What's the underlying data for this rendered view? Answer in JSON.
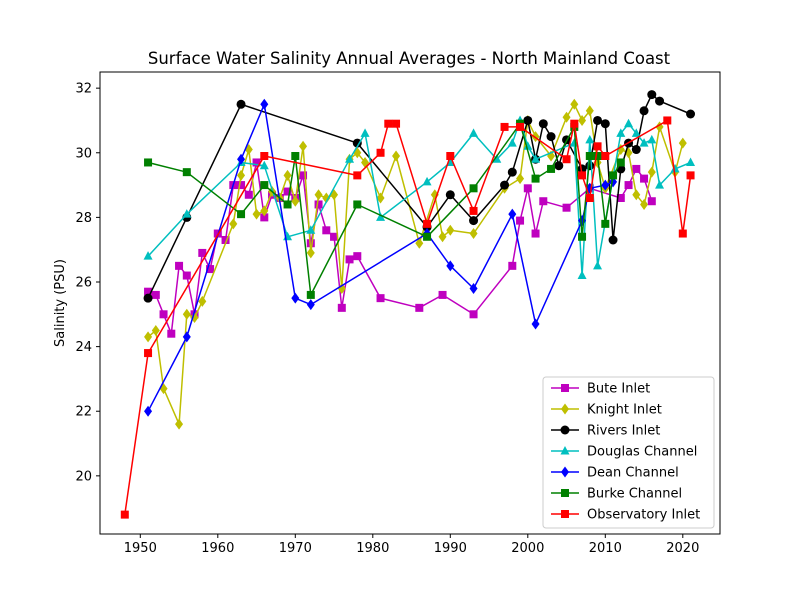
{
  "chart_data": {
    "type": "line",
    "title": "Surface Water Salinity Annual Averages - North Mainland Coast",
    "xlabel": "",
    "ylabel": "Salinity (PSU)",
    "xlim": [
      1944.8,
      2024.8
    ],
    "ylim": [
      18.2,
      32.5
    ],
    "xticks": [
      1950,
      1960,
      1970,
      1980,
      1990,
      2000,
      2010,
      2020
    ],
    "yticks": [
      20,
      22,
      24,
      26,
      28,
      30,
      32
    ],
    "grid": false,
    "legend_position": "bottom-right",
    "series": [
      {
        "name": "Bute Inlet",
        "color": "#bf00bf",
        "marker": "square",
        "x": [
          1951,
          1952,
          1953,
          1954,
          1955,
          1956,
          1957,
          1958,
          1959,
          1960,
          1961,
          1962,
          1963,
          1964,
          1965,
          1966,
          1967,
          1968,
          1969,
          1970,
          1971,
          1972,
          1973,
          1974,
          1975,
          1976,
          1977,
          1978,
          1981,
          1986,
          1989,
          1993,
          1998,
          1999,
          2000,
          2001,
          2002,
          2005,
          2008,
          2012,
          2013,
          2014,
          2015,
          2016
        ],
        "y": [
          25.7,
          25.6,
          25.0,
          24.4,
          26.5,
          26.2,
          25.0,
          26.9,
          26.4,
          27.5,
          27.3,
          29.0,
          29.0,
          28.7,
          29.7,
          28.0,
          28.7,
          28.6,
          28.8,
          28.6,
          29.3,
          27.2,
          28.4,
          27.6,
          27.4,
          25.2,
          26.7,
          26.8,
          25.5,
          25.2,
          25.6,
          25.0,
          26.5,
          27.9,
          28.9,
          27.5,
          28.5,
          28.3,
          28.9,
          28.6,
          29.0,
          29.5,
          29.2,
          28.5
        ]
      },
      {
        "name": "Knight Inlet",
        "color": "#bfbf00",
        "marker": "diamond",
        "x": [
          1951,
          1952,
          1953,
          1955,
          1956,
          1957,
          1958,
          1962,
          1963,
          1964,
          1965,
          1966,
          1967,
          1968,
          1969,
          1970,
          1971,
          1972,
          1973,
          1974,
          1975,
          1976,
          1977,
          1978,
          1979,
          1981,
          1983,
          1986,
          1988,
          1989,
          1990,
          1993,
          1997,
          1999,
          2000,
          2001,
          2003,
          2005,
          2006,
          2007,
          2008,
          2009,
          2010,
          2012,
          2013,
          2014,
          2015,
          2016,
          2017,
          2019,
          2020
        ],
        "y": [
          24.3,
          24.5,
          22.7,
          21.6,
          25.0,
          24.9,
          25.4,
          27.8,
          29.3,
          30.1,
          28.1,
          28.2,
          28.8,
          28.6,
          29.3,
          28.5,
          30.2,
          26.9,
          28.7,
          28.6,
          28.7,
          25.8,
          29.8,
          30.0,
          29.7,
          28.6,
          29.9,
          27.2,
          28.7,
          27.4,
          27.6,
          27.5,
          28.9,
          29.2,
          31.0,
          30.5,
          29.9,
          31.1,
          31.5,
          31.0,
          31.3,
          29.7,
          28.9,
          30.1,
          30.0,
          28.7,
          28.4,
          29.4,
          30.8,
          29.4,
          30.3
        ]
      },
      {
        "name": "Rivers Inlet",
        "color": "#000000",
        "marker": "circle",
        "x": [
          1951,
          1956,
          1963,
          1978,
          1987,
          1990,
          1993,
          1997,
          1998,
          2000,
          2001,
          2002,
          2003,
          2004,
          2005,
          2007,
          2008,
          2009,
          2010,
          2011,
          2012,
          2013,
          2014,
          2015,
          2016,
          2017,
          2021
        ],
        "y": [
          25.5,
          28.0,
          31.5,
          30.3,
          27.7,
          28.7,
          27.9,
          29.0,
          29.4,
          31.0,
          29.8,
          30.9,
          30.5,
          29.6,
          30.4,
          29.5,
          29.6,
          31.0,
          30.9,
          27.3,
          29.5,
          30.3,
          30.1,
          31.3,
          31.8,
          31.6,
          31.2
        ]
      },
      {
        "name": "Douglas Channel",
        "color": "#00bfbf",
        "marker": "triangle",
        "x": [
          1951,
          1956,
          1963,
          1966,
          1969,
          1972,
          1977,
          1979,
          1981,
          1987,
          1990,
          1993,
          1996,
          1998,
          1999,
          2000,
          2001,
          2006,
          2007,
          2008,
          2009,
          2012,
          2013,
          2014,
          2015,
          2016,
          2017,
          2019,
          2021
        ],
        "y": [
          26.8,
          28.1,
          29.7,
          29.6,
          27.4,
          27.6,
          29.8,
          30.6,
          28.0,
          29.1,
          29.7,
          30.6,
          29.8,
          30.3,
          31.0,
          30.2,
          29.8,
          30.3,
          26.2,
          30.4,
          26.5,
          30.6,
          30.9,
          30.6,
          30.3,
          30.4,
          29.0,
          29.5,
          29.7
        ]
      },
      {
        "name": "Dean Channel",
        "color": "#0000ff",
        "marker": "diamond",
        "x": [
          1951,
          1956,
          1963,
          1966,
          1970,
          1972,
          1987,
          1990,
          1993,
          1998,
          2001,
          2007,
          2008,
          2010,
          2011
        ],
        "y": [
          22.0,
          24.3,
          29.8,
          31.5,
          25.5,
          25.3,
          27.5,
          26.5,
          25.8,
          28.1,
          24.7,
          27.9,
          28.9,
          29.0,
          29.1
        ]
      },
      {
        "name": "Burke Channel",
        "color": "#008000",
        "marker": "square",
        "x": [
          1951,
          1956,
          1963,
          1966,
          1969,
          1970,
          1972,
          1978,
          1987,
          1993,
          1999,
          2001,
          2003,
          2006,
          2007,
          2008,
          2009,
          2010,
          2011,
          2012
        ],
        "y": [
          29.7,
          29.4,
          28.1,
          29.0,
          28.4,
          29.9,
          25.6,
          28.4,
          27.4,
          28.9,
          30.9,
          29.2,
          29.5,
          30.8,
          27.4,
          29.9,
          29.9,
          27.8,
          29.3,
          29.7
        ]
      },
      {
        "name": "Observatory Inlet",
        "color": "#ff0000",
        "marker": "square",
        "x": [
          1948,
          1951,
          1966,
          1978,
          1981,
          1982,
          1983,
          1987,
          1990,
          1993,
          1997,
          1999,
          2005,
          2006,
          2007,
          2008,
          2009,
          2010,
          2018,
          2020,
          2021
        ],
        "y": [
          18.8,
          23.8,
          29.9,
          29.3,
          30.0,
          30.9,
          30.9,
          27.8,
          29.9,
          28.2,
          30.8,
          30.8,
          29.8,
          30.9,
          29.3,
          28.6,
          30.2,
          29.9,
          31.0,
          27.5,
          29.3
        ]
      }
    ]
  }
}
